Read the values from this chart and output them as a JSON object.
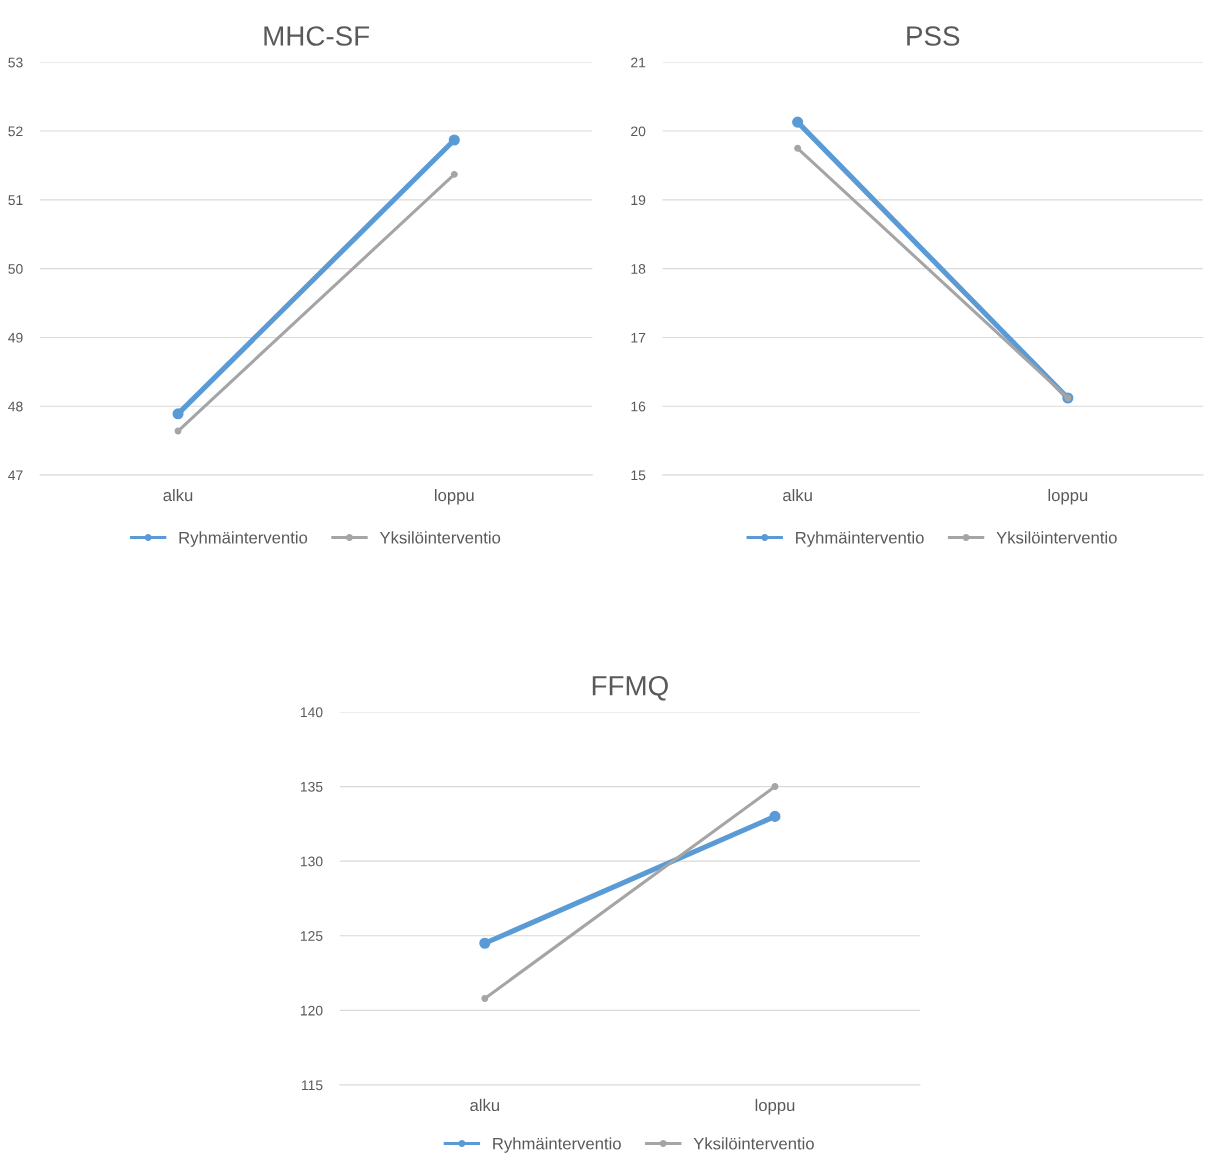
{
  "chart_data": [
    {
      "type": "line",
      "title": "MHC-SF",
      "categories": [
        "alku",
        "loppu"
      ],
      "series": [
        {
          "name": "Ryhmäinterventio",
          "color": "#5b9bd5",
          "values": [
            47.89,
            51.87
          ]
        },
        {
          "name": "Yksilöinterventio",
          "color": "#a5a5a5",
          "values": [
            47.64,
            51.37
          ]
        }
      ],
      "ylim": [
        47,
        53
      ],
      "yticks": [
        47,
        48,
        49,
        50,
        51,
        52,
        53
      ],
      "grid": "y",
      "legend": "bottom",
      "marker": "circle",
      "line_style": "solid"
    },
    {
      "type": "line",
      "title": "PSS",
      "categories": [
        "alku",
        "loppu"
      ],
      "series": [
        {
          "name": "Ryhmäinterventio",
          "color": "#5b9bd5",
          "values": [
            20.13,
            16.12
          ]
        },
        {
          "name": "Yksilöinterventio",
          "color": "#a5a5a5",
          "values": [
            19.75,
            16.12
          ]
        }
      ],
      "ylim": [
        15,
        21
      ],
      "yticks": [
        15,
        16,
        17,
        18,
        19,
        20,
        21
      ],
      "grid": "y",
      "legend": "bottom",
      "marker": "circle",
      "line_style": "solid"
    },
    {
      "type": "line",
      "title": "FFMQ",
      "categories": [
        "alku",
        "loppu"
      ],
      "series": [
        {
          "name": "Ryhmäinterventio",
          "color": "#5b9bd5",
          "values": [
            124.5,
            133.0
          ]
        },
        {
          "name": "Yksilöinterventio",
          "color": "#a5a5a5",
          "values": [
            120.8,
            135.0
          ]
        }
      ],
      "ylim": [
        115,
        140
      ],
      "yticks": [
        115,
        120,
        125,
        130,
        135,
        140
      ],
      "grid": "y",
      "legend": "bottom",
      "marker": "circle",
      "line_style": "solid"
    }
  ]
}
